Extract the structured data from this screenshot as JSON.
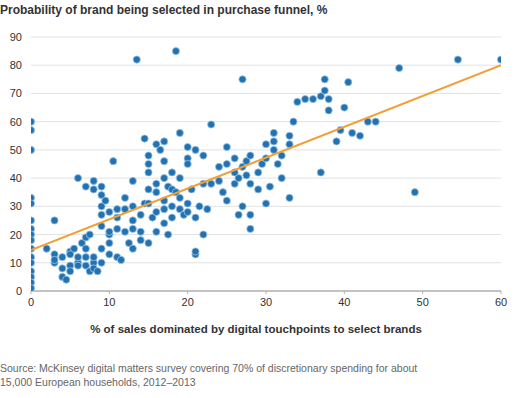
{
  "chart_data": {
    "type": "scatter",
    "title": "Probability of brand being selected in purchase funnel, %",
    "x_label": "% of sales dominated by digital touchpoints to select brands",
    "source": [
      "Source: McKinsey digital matters survey covering 70% of discretionary spending for about",
      "15,000 European households, 2012–2013"
    ],
    "xlim": [
      0,
      60
    ],
    "ylim": [
      0,
      90
    ],
    "xticks": [
      0,
      10,
      20,
      30,
      40,
      50,
      60
    ],
    "yticks": [
      0,
      10,
      20,
      30,
      40,
      50,
      60,
      70,
      80,
      90
    ],
    "grid": true,
    "series": [
      {
        "type": "scatter",
        "color": "#2471b0",
        "marker": "circle",
        "x": [
          0,
          0,
          0,
          0,
          0,
          0,
          0,
          0,
          0,
          0,
          0,
          0,
          0,
          0,
          0,
          0,
          2,
          3,
          3,
          3,
          3,
          4,
          4,
          4,
          4.5,
          5,
          5,
          5,
          5,
          5.5,
          6,
          6,
          6,
          6,
          6.5,
          7,
          7,
          7,
          7,
          7,
          7.5,
          7.5,
          8,
          8,
          8,
          8,
          8,
          8.5,
          9,
          9,
          9,
          9,
          9,
          9,
          9,
          9.5,
          10,
          10,
          10,
          10,
          10,
          10.5,
          11,
          11,
          11,
          11,
          11.5,
          12,
          12,
          12,
          12.5,
          13,
          13,
          13,
          13,
          13,
          13.5,
          14,
          14,
          14,
          14.5,
          14.5,
          15,
          15,
          15,
          15,
          15,
          15,
          15.5,
          16,
          16,
          16,
          16,
          16,
          16.5,
          17,
          17,
          17,
          17,
          17,
          17,
          17.5,
          17.5,
          18,
          18,
          18,
          18,
          18.5,
          18.5,
          19,
          19,
          19,
          19,
          19.5,
          20,
          20,
          20,
          20,
          20,
          20.5,
          21,
          21,
          21,
          21,
          21.5,
          22,
          22,
          22,
          22.5,
          23,
          23,
          24,
          24,
          24.5,
          25,
          25,
          25,
          26,
          26,
          26,
          26.5,
          26.5,
          27,
          27,
          27,
          27.5,
          27.5,
          28,
          28,
          28,
          28,
          29,
          29,
          29.5,
          30,
          30,
          30,
          30.5,
          31,
          31,
          31,
          31.5,
          32,
          32,
          33,
          33,
          33,
          33.5,
          34,
          35,
          36,
          37,
          37.5,
          37.5,
          37,
          38,
          38,
          39,
          39.5,
          40,
          40.5,
          41,
          42,
          43,
          44,
          47,
          49,
          54.5,
          60
        ],
        "values": [
          60,
          57,
          50,
          33,
          31,
          25,
          22,
          20,
          18,
          15,
          12,
          10,
          7,
          5,
          3,
          1,
          15,
          13,
          10,
          25,
          11,
          12,
          8,
          5,
          4,
          14,
          9,
          7,
          13,
          15,
          10,
          12,
          9,
          40,
          17,
          19,
          15,
          12,
          9,
          37,
          20,
          7,
          10,
          8,
          39,
          36,
          12,
          7,
          27,
          23,
          15,
          10,
          30,
          34,
          37,
          32,
          20,
          17,
          13,
          28,
          21,
          46,
          22,
          29,
          12,
          26,
          11,
          21,
          29,
          33,
          17,
          22,
          30,
          25,
          15,
          39,
          82,
          18,
          27,
          21,
          31,
          54,
          48,
          45,
          17,
          36,
          42,
          31,
          26,
          28,
          38,
          52,
          35,
          21,
          50,
          40,
          32,
          46,
          53,
          29,
          24,
          37,
          20,
          36,
          30,
          42,
          26,
          85,
          35,
          40,
          33,
          56,
          29,
          27,
          47,
          51,
          31,
          28,
          45,
          36,
          50,
          13,
          26,
          14,
          30,
          38,
          48,
          20,
          29,
          38,
          59,
          44,
          39,
          35,
          51,
          45,
          32,
          47,
          42,
          38,
          40,
          27,
          75,
          44,
          30,
          46,
          41,
          48,
          38,
          27,
          22,
          36,
          42,
          45,
          47,
          52,
          31,
          37,
          56,
          50,
          53,
          45,
          48,
          40,
          55,
          52,
          33,
          60,
          67,
          68,
          68,
          69,
          75,
          71,
          42,
          64,
          68,
          53,
          57,
          65,
          74,
          56,
          55,
          60,
          60,
          79,
          35,
          82,
          82
        ]
      },
      {
        "type": "line",
        "color": "#f0a035",
        "line_style": "solid",
        "x": [
          0,
          60
        ],
        "values": [
          14.5,
          80
        ]
      }
    ]
  }
}
